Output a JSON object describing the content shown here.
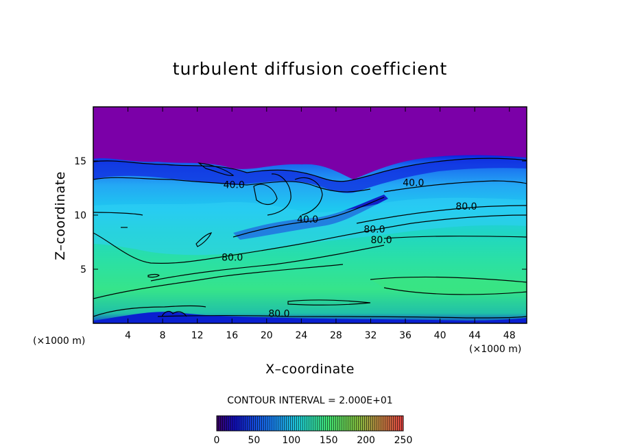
{
  "chart_data": {
    "type": "heatmap",
    "title": "turbulent diffusion coefficient",
    "xlabel": "X–coordinate",
    "ylabel": "Z–coordinate",
    "x_unit": "(×1000 m)",
    "xlim": [
      0,
      50
    ],
    "ylim": [
      0,
      20
    ],
    "x_ticks": [
      4,
      8,
      12,
      16,
      20,
      24,
      28,
      32,
      36,
      40,
      44,
      48
    ],
    "y_ticks": [
      5,
      10,
      15
    ],
    "contour_interval": "CONTOUR INTERVAL = 2.000E+01",
    "contour_labels": [
      {
        "text": "40.0",
        "x": 15.0,
        "z": 12.5
      },
      {
        "text": "40.0",
        "x": 23.5,
        "z": 9.3
      },
      {
        "text": "40.0",
        "x": 35.7,
        "z": 12.7
      },
      {
        "text": "80.0",
        "x": 14.8,
        "z": 5.8
      },
      {
        "text": "80.0",
        "x": 31.2,
        "z": 8.4
      },
      {
        "text": "80.0",
        "x": 32.0,
        "z": 7.4
      },
      {
        "text": "80.0",
        "x": 41.8,
        "z": 10.5
      },
      {
        "text": "80.0",
        "x": 20.2,
        "z": 0.6
      }
    ],
    "colorbar": {
      "min": 0,
      "max": 250,
      "tick_labels": [
        "0",
        "50",
        "100",
        "150",
        "200",
        "250"
      ]
    },
    "colors": {
      "top_region": "#7b00a8",
      "low": "#0a1ad8",
      "mid": "#19b4ff",
      "high": "#28e0a0"
    }
  }
}
